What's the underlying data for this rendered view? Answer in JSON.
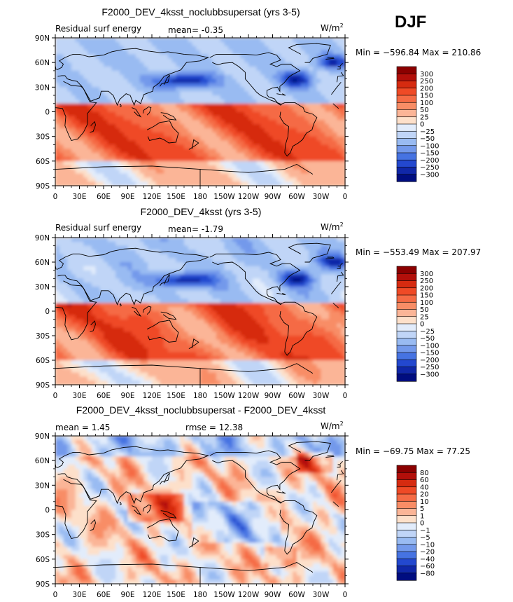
{
  "season": "DJF",
  "units_label": "W/m",
  "units_sup": "2",
  "chart_data": [
    {
      "type": "heatmap",
      "title": "F2000_DEV_4ksst_noclubbsupersat (yrs 3-5)",
      "left_label": "Residual surf energy",
      "center_label": "mean=  -0.35",
      "mean": -0.35,
      "stats": "Min = −596.84 Max = 210.86",
      "min": -596.84,
      "max": 210.86,
      "y_ticks": [
        "90N",
        "60N",
        "30N",
        "0",
        "30S",
        "60S",
        "90S"
      ],
      "x_ticks": [
        "0",
        "30E",
        "60E",
        "90E",
        "120E",
        "150E",
        "180",
        "150W",
        "120W",
        "90W",
        "60W",
        "30W",
        "0"
      ],
      "colorbar_levels": [
        "300",
        "250",
        "200",
        "150",
        "100",
        "50",
        "25",
        "0",
        "−25",
        "−50",
        "−100",
        "−150",
        "−200",
        "−250",
        "−300"
      ],
      "colors": [
        "#8b0000",
        "#b20f0a",
        "#d62b10",
        "#ef4a26",
        "#f56b45",
        "#f88d66",
        "#fbb597",
        "#fde0ca",
        "#e2ecfb",
        "#c0d5f7",
        "#99bbf2",
        "#7399eb",
        "#4673e2",
        "#2348cf",
        "#1027a8",
        "#000d80"
      ]
    },
    {
      "type": "heatmap",
      "title": "F2000_DEV_4ksst (yrs 3-5)",
      "left_label": "Residual surf energy",
      "center_label": "mean=  -1.79",
      "mean": -1.79,
      "stats": "Min = −553.49 Max = 207.97",
      "min": -553.49,
      "max": 207.97,
      "y_ticks": [
        "90N",
        "60N",
        "30N",
        "0",
        "30S",
        "60S",
        "90S"
      ],
      "x_ticks": [
        "0",
        "30E",
        "60E",
        "90E",
        "120E",
        "150E",
        "180",
        "150W",
        "120W",
        "90W",
        "60W",
        "30W",
        "0"
      ],
      "colorbar_levels": [
        "300",
        "250",
        "200",
        "150",
        "100",
        "50",
        "25",
        "0",
        "−25",
        "−50",
        "−100",
        "−150",
        "−200",
        "−250",
        "−300"
      ],
      "colors": [
        "#8b0000",
        "#b20f0a",
        "#d62b10",
        "#ef4a26",
        "#f56b45",
        "#f88d66",
        "#fbb597",
        "#fde0ca",
        "#e2ecfb",
        "#c0d5f7",
        "#99bbf2",
        "#7399eb",
        "#4673e2",
        "#2348cf",
        "#1027a8",
        "#000d80"
      ]
    },
    {
      "type": "heatmap",
      "title": "F2000_DEV_4ksst_noclubbsupersat - F2000_DEV_4ksst",
      "left_label": "mean =    1.45",
      "center_label": "rmse =   12.38",
      "mean": 1.45,
      "rmse": 12.38,
      "stats": "Min = −69.75 Max =  77.25",
      "min": -69.75,
      "max": 77.25,
      "y_ticks": [
        "90N",
        "60N",
        "30N",
        "0",
        "30S",
        "60S",
        "90S"
      ],
      "x_ticks": [
        "0",
        "30E",
        "60E",
        "90E",
        "120E",
        "150E",
        "180",
        "150W",
        "120W",
        "90W",
        "60W",
        "30W",
        "0"
      ],
      "colorbar_levels": [
        "80",
        "60",
        "40",
        "20",
        "10",
        "5",
        "1",
        "0",
        "−1",
        "−5",
        "−10",
        "−20",
        "−40",
        "−60",
        "−80"
      ],
      "colors": [
        "#8b0000",
        "#b20f0a",
        "#d62b10",
        "#ef4a26",
        "#f56b45",
        "#f88d66",
        "#fbb597",
        "#fde0ca",
        "#e2ecfb",
        "#c0d5f7",
        "#99bbf2",
        "#7399eb",
        "#4673e2",
        "#2348cf",
        "#1027a8",
        "#000d80"
      ]
    }
  ]
}
